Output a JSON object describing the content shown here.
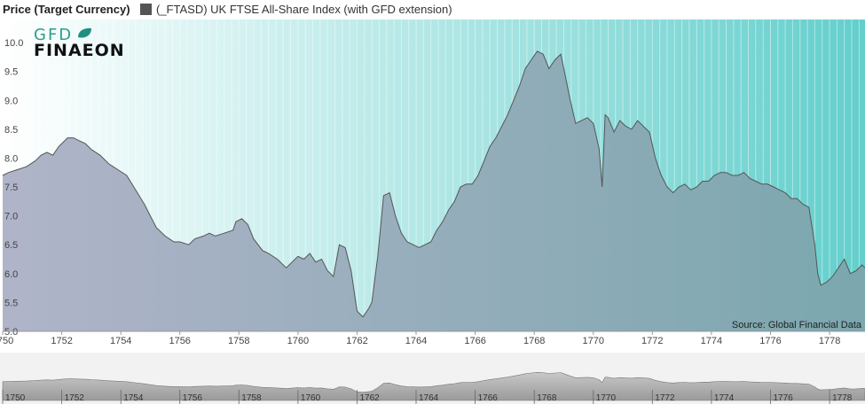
{
  "header": {
    "title": "Price (Target Currency)",
    "legend_label": "(_FTASD) UK FTSE All-Share Index (with GFD extension)",
    "legend_color": "#555555"
  },
  "logo": {
    "line1": "GFD",
    "line2": "FINAEON"
  },
  "source": "Source: Global Financial Data",
  "colors": {
    "bg_left": "#ffffff",
    "bg_right": "#63cfcc",
    "area_left": "#b0b4c8",
    "area_right": "#7ba7ae",
    "line": "#555555"
  },
  "chart_data": {
    "type": "area",
    "title": "Price (Target Currency)",
    "xlabel": "",
    "ylabel": "",
    "xlim": [
      1750.0,
      1779.2
    ],
    "ylim": [
      5.0,
      10.4
    ],
    "yticks": [
      5.0,
      5.5,
      6.0,
      6.5,
      7.0,
      7.5,
      8.0,
      8.5,
      9.0,
      9.5,
      10.0
    ],
    "xticks": [
      1750,
      1752,
      1754,
      1756,
      1758,
      1760,
      1762,
      1764,
      1766,
      1768,
      1770,
      1772,
      1774,
      1776,
      1778
    ],
    "series": [
      {
        "name": "(_FTASD) UK FTSE All-Share Index (with GFD extension)",
        "x": [
          1750.0,
          1750.2,
          1750.5,
          1750.8,
          1751.1,
          1751.3,
          1751.5,
          1751.7,
          1751.9,
          1752.0,
          1752.2,
          1752.4,
          1752.6,
          1752.8,
          1753.0,
          1753.3,
          1753.6,
          1753.9,
          1754.2,
          1754.5,
          1754.8,
          1755.0,
          1755.2,
          1755.5,
          1755.8,
          1756.0,
          1756.3,
          1756.5,
          1756.8,
          1757.0,
          1757.2,
          1757.5,
          1757.8,
          1757.9,
          1758.1,
          1758.3,
          1758.5,
          1758.8,
          1759.0,
          1759.3,
          1759.6,
          1759.8,
          1760.0,
          1760.2,
          1760.4,
          1760.6,
          1760.8,
          1761.0,
          1761.1,
          1761.2,
          1761.4,
          1761.6,
          1761.8,
          1761.9,
          1762.0,
          1762.2,
          1762.4,
          1762.5,
          1762.7,
          1762.9,
          1763.1,
          1763.3,
          1763.5,
          1763.7,
          1763.9,
          1764.1,
          1764.3,
          1764.5,
          1764.7,
          1764.9,
          1765.1,
          1765.3,
          1765.5,
          1765.7,
          1765.9,
          1766.1,
          1766.3,
          1766.5,
          1766.7,
          1766.9,
          1767.1,
          1767.3,
          1767.5,
          1767.7,
          1767.9,
          1768.1,
          1768.3,
          1768.5,
          1768.7,
          1768.9,
          1769.0,
          1769.2,
          1769.4,
          1769.6,
          1769.8,
          1770.0,
          1770.2,
          1770.3,
          1770.4,
          1770.5,
          1770.7,
          1770.9,
          1771.1,
          1771.3,
          1771.5,
          1771.7,
          1771.9,
          1772.1,
          1772.3,
          1772.5,
          1772.7,
          1772.9,
          1773.1,
          1773.3,
          1773.5,
          1773.7,
          1773.9,
          1774.1,
          1774.3,
          1774.5,
          1774.7,
          1774.9,
          1775.1,
          1775.3,
          1775.5,
          1775.7,
          1775.9,
          1776.1,
          1776.3,
          1776.5,
          1776.7,
          1776.9,
          1777.1,
          1777.3,
          1777.5,
          1777.6,
          1777.7,
          1777.9,
          1778.1,
          1778.3,
          1778.5,
          1778.7,
          1778.9,
          1779.1,
          1779.2
        ],
        "values": [
          7.7,
          7.75,
          7.8,
          7.85,
          7.95,
          8.05,
          8.1,
          8.05,
          8.2,
          8.25,
          8.35,
          8.35,
          8.3,
          8.25,
          8.15,
          8.05,
          7.9,
          7.8,
          7.7,
          7.45,
          7.2,
          7.0,
          6.8,
          6.65,
          6.55,
          6.55,
          6.5,
          6.6,
          6.65,
          6.7,
          6.65,
          6.7,
          6.75,
          6.9,
          6.95,
          6.85,
          6.6,
          6.4,
          6.35,
          6.25,
          6.1,
          6.2,
          6.3,
          6.25,
          6.35,
          6.2,
          6.25,
          6.05,
          6.0,
          5.95,
          6.5,
          6.45,
          6.05,
          5.7,
          5.35,
          5.25,
          5.4,
          5.5,
          6.3,
          7.35,
          7.4,
          7.0,
          6.7,
          6.55,
          6.5,
          6.45,
          6.5,
          6.55,
          6.75,
          6.9,
          7.1,
          7.25,
          7.5,
          7.55,
          7.55,
          7.7,
          7.95,
          8.2,
          8.35,
          8.55,
          8.75,
          9.0,
          9.25,
          9.55,
          9.7,
          9.85,
          9.8,
          9.55,
          9.7,
          9.8,
          9.55,
          9.05,
          8.6,
          8.65,
          8.7,
          8.6,
          8.15,
          7.5,
          8.75,
          8.7,
          8.45,
          8.65,
          8.55,
          8.5,
          8.65,
          8.55,
          8.45,
          8.0,
          7.7,
          7.5,
          7.4,
          7.5,
          7.55,
          7.45,
          7.5,
          7.6,
          7.6,
          7.7,
          7.75,
          7.75,
          7.7,
          7.7,
          7.75,
          7.65,
          7.6,
          7.55,
          7.55,
          7.5,
          7.45,
          7.4,
          7.3,
          7.3,
          7.2,
          7.15,
          6.5,
          6.0,
          5.8,
          5.85,
          5.95,
          6.1,
          6.25,
          6.0,
          6.05,
          6.15,
          6.1
        ]
      }
    ],
    "grid": "vertical",
    "legend_position": "top"
  }
}
